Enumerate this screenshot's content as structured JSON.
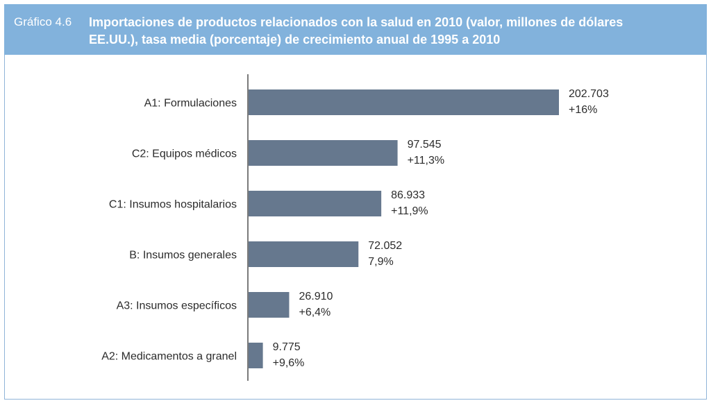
{
  "header": {
    "figure_label": "Gráfico 4.6",
    "title": "Importaciones de productos relacionados con la salud en 2010 (valor, millones de dólares EE.UU.), tasa media (porcentaje) de crecimiento anual de 1995 a 2010"
  },
  "colors": {
    "bar": "#66788e",
    "header_bg": "#82b2dc"
  },
  "chart_data": {
    "type": "bar",
    "orientation": "horizontal",
    "title": "Importaciones de productos relacionados con la salud en 2010 (valor, millones de dólares EE.UU.), tasa media (porcentaje) de crecimiento anual de 1995 a 2010",
    "categories": [
      "A1: Formulaciones",
      "C2: Equipos médicos",
      "C1: Insumos hospitalarios",
      "B: Insumos generales",
      "A3: Insumos específicos",
      "A2: Medicamentos a granel"
    ],
    "values": [
      202703,
      97545,
      86933,
      72052,
      26910,
      9775
    ],
    "value_labels": [
      "202.703",
      "97.545",
      "86.933",
      "72.052",
      "26.910",
      "9.775"
    ],
    "growth_labels": [
      "+16%",
      "+11,3%",
      "+11,9%",
      "7,9%",
      "+6,4%",
      "+9,6%"
    ],
    "xlim": [
      0,
      202703
    ],
    "grid": false
  }
}
